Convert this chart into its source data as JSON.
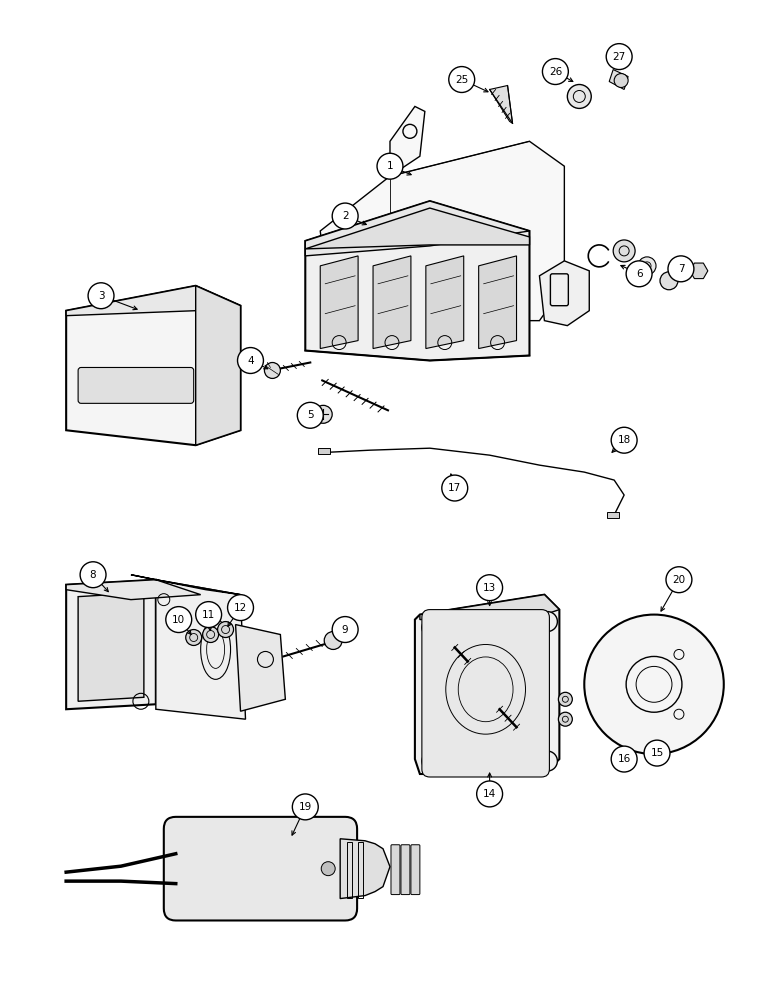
{
  "bg_color": "#ffffff",
  "line_color": "#000000",
  "figsize": [
    7.72,
    10.0
  ],
  "dpi": 100,
  "callout_r": 0.018,
  "callout_fontsize": 7.5
}
